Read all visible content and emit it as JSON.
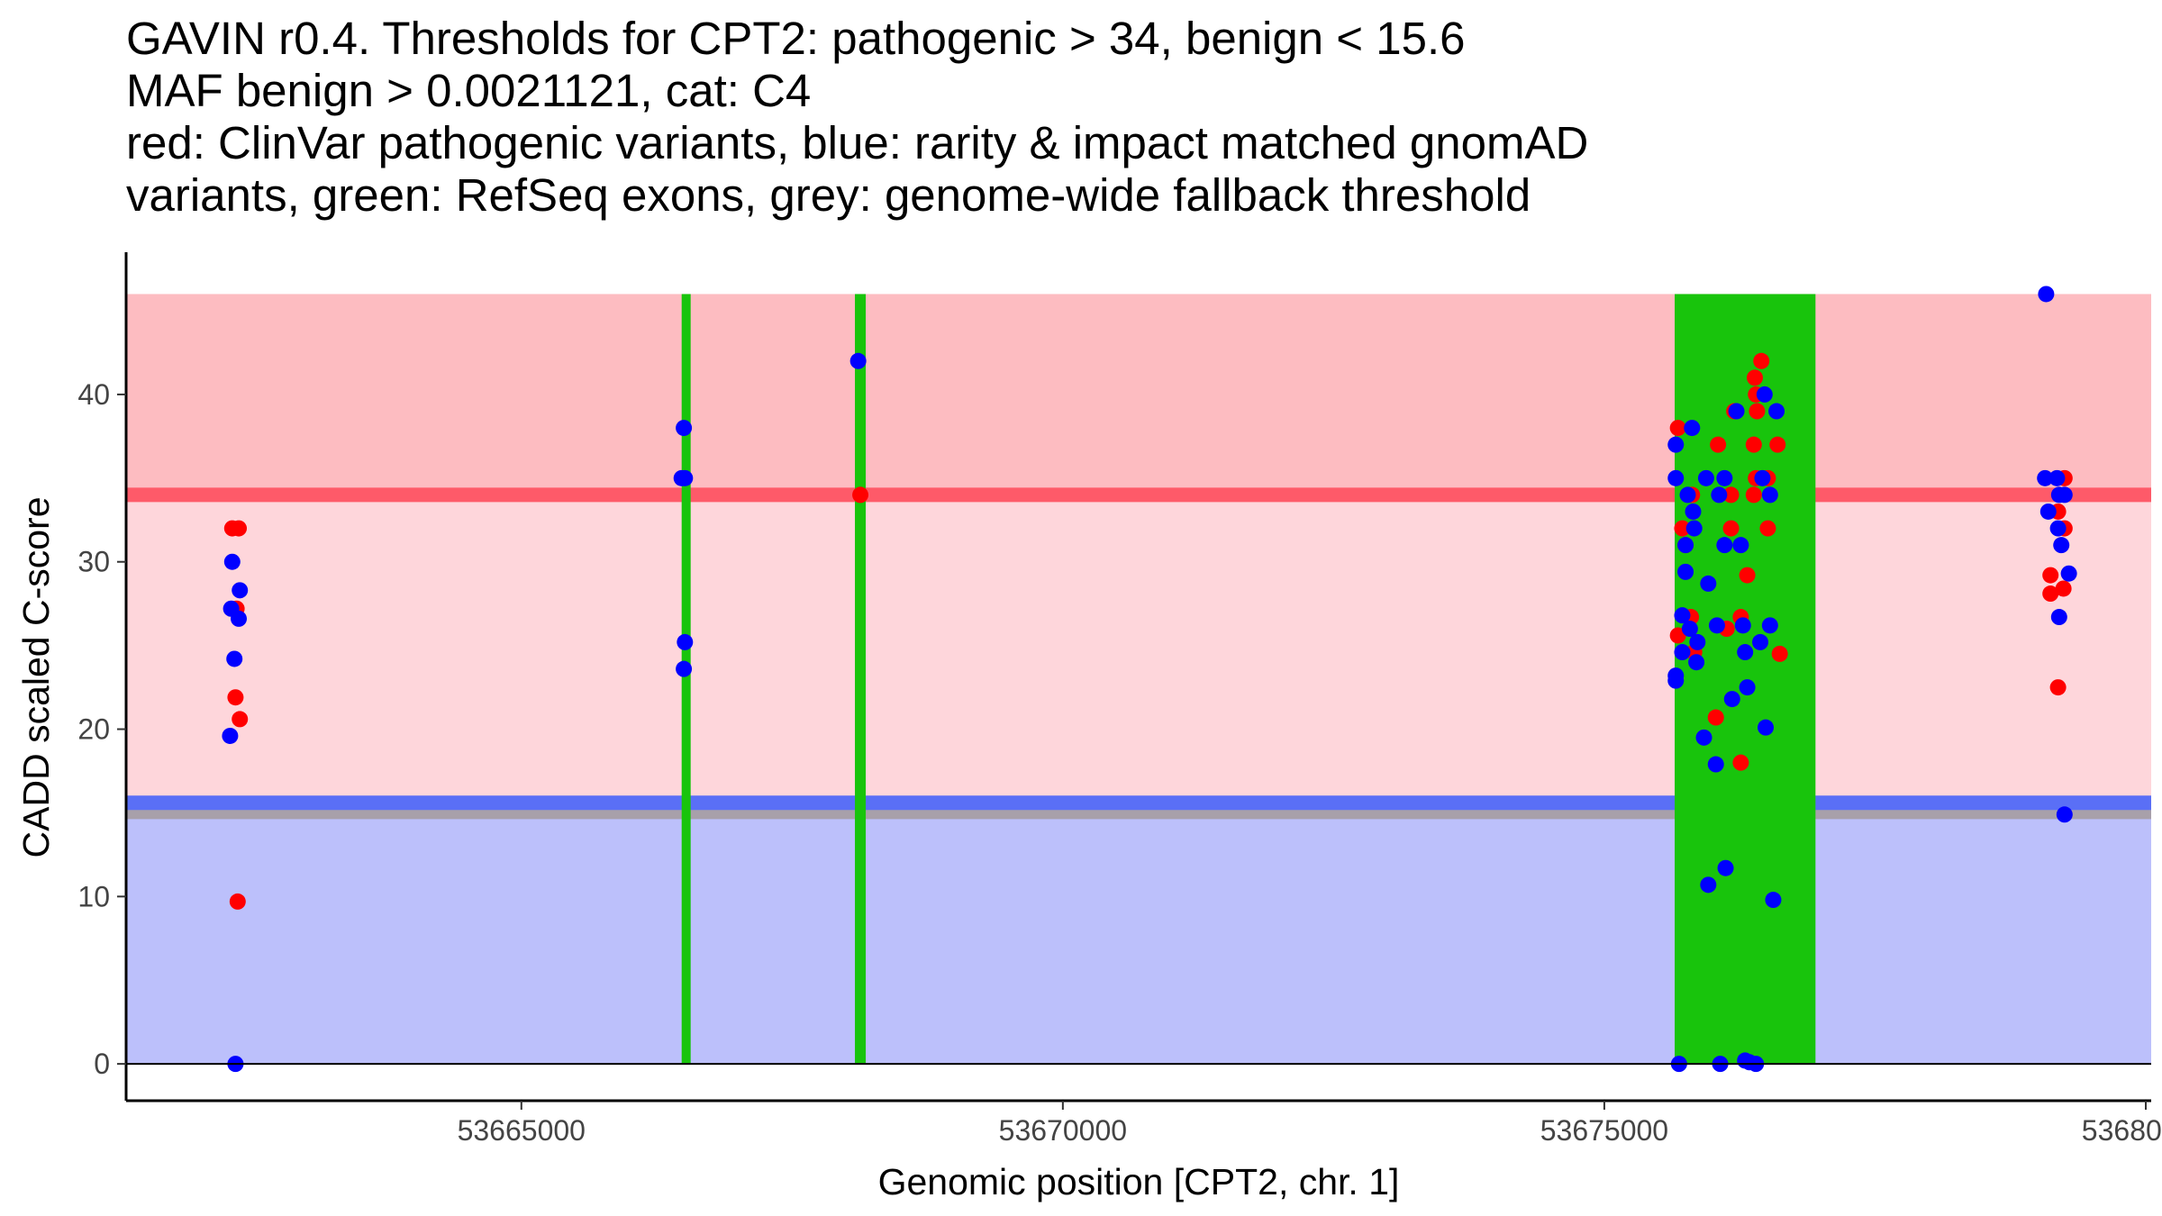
{
  "title_lines": [
    "GAVIN r0.4. Thresholds for CPT2: pathogenic > 34, benign < 15.6",
    "MAF benign > 0.0021121, cat: C4",
    "red: ClinVar pathogenic variants, blue: rarity & impact matched gnomAD",
    "variants, green: RefSeq exons, grey: genome-wide fallback threshold"
  ],
  "colors": {
    "pathogenic_zone": "#fdbcc1",
    "grey_zone": "#fed6db",
    "benign_zone": "#bcc0fb",
    "pathogenic_line": "#fe5a69",
    "benign_line": "#5a6ff6",
    "fallback_line": "#a8a0aa",
    "exon": "#18c40c",
    "clinvar_point": "#ff0000",
    "gnomad_point": "#0000ff"
  },
  "chart_data": {
    "type": "scatter",
    "title": "GAVIN r0.4. Thresholds for CPT2: pathogenic > 34, benign < 15.6",
    "xlabel": "Genomic position [CPT2, chr. 1]",
    "ylabel": "CADD scaled C-score",
    "xlim": [
      53661350,
      53680050
    ],
    "ylim": [
      -2.2,
      48.5
    ],
    "x_ticks": [
      53665000,
      53670000,
      53675000,
      53680000
    ],
    "x_tick_labels": [
      "53665000",
      "53670000",
      "53675000",
      "53680000"
    ],
    "y_ticks": [
      0,
      10,
      20,
      30,
      40
    ],
    "y_tick_labels": [
      "0",
      "10",
      "20",
      "30",
      "40"
    ],
    "thresholds": {
      "pathogenic": 34,
      "benign": 15.6,
      "fallback": 15,
      "zone_top": 46
    },
    "exons": [
      [
        53666480,
        53666560
      ],
      [
        53668080,
        53668180
      ],
      [
        53675650,
        53676950
      ]
    ],
    "series": [
      {
        "name": "ClinVar pathogenic",
        "color": "red",
        "points": [
          [
            53662330,
            32
          ],
          [
            53662390,
            32
          ],
          [
            53662370,
            27.2
          ],
          [
            53662360,
            21.9
          ],
          [
            53662400,
            20.6
          ],
          [
            53662380,
            9.7
          ],
          [
            53668130,
            34
          ],
          [
            53675680,
            38
          ],
          [
            53675720,
            32
          ],
          [
            53675750,
            31
          ],
          [
            53675810,
            34
          ],
          [
            53675800,
            26.7
          ],
          [
            53675680,
            25.6
          ],
          [
            53675830,
            24.6
          ],
          [
            53676030,
            20.7
          ],
          [
            53676050,
            37
          ],
          [
            53676130,
            26
          ],
          [
            53676170,
            32
          ],
          [
            53676200,
            39
          ],
          [
            53676170,
            34
          ],
          [
            53676260,
            26.7
          ],
          [
            53676260,
            18
          ],
          [
            53676320,
            29.2
          ],
          [
            53676390,
            41
          ],
          [
            53676400,
            40
          ],
          [
            53676410,
            39
          ],
          [
            53676450,
            42
          ],
          [
            53676380,
            37
          ],
          [
            53676400,
            35
          ],
          [
            53676380,
            34
          ],
          [
            53676510,
            35
          ],
          [
            53676510,
            32
          ],
          [
            53676600,
            37
          ],
          [
            53676620,
            24.5
          ],
          [
            53679120,
            29.2
          ],
          [
            53679120,
            28.1
          ],
          [
            53679190,
            33
          ],
          [
            53679190,
            22.5
          ],
          [
            53679250,
            35
          ],
          [
            53679250,
            32
          ],
          [
            53679240,
            28.4
          ]
        ]
      },
      {
        "name": "gnomAD matched",
        "color": "blue",
        "points": [
          [
            53662320,
            27.2
          ],
          [
            53662330,
            30
          ],
          [
            53662350,
            24.2
          ],
          [
            53662400,
            28.3
          ],
          [
            53662390,
            26.6
          ],
          [
            53662310,
            19.6
          ],
          [
            53662360,
            0
          ],
          [
            53666500,
            38
          ],
          [
            53666480,
            35
          ],
          [
            53666510,
            35
          ],
          [
            53666510,
            25.2
          ],
          [
            53666500,
            23.6
          ],
          [
            53668110,
            42
          ],
          [
            53675660,
            37
          ],
          [
            53675660,
            35
          ],
          [
            53675660,
            23.2
          ],
          [
            53675660,
            22.9
          ],
          [
            53675690,
            0
          ],
          [
            53675720,
            26.8
          ],
          [
            53675720,
            24.6
          ],
          [
            53675750,
            29.4
          ],
          [
            53675750,
            31
          ],
          [
            53675770,
            34
          ],
          [
            53675790,
            26
          ],
          [
            53675810,
            38
          ],
          [
            53675820,
            33
          ],
          [
            53675830,
            32
          ],
          [
            53675860,
            25.2
          ],
          [
            53675850,
            24
          ],
          [
            53675920,
            19.5
          ],
          [
            53675960,
            28.7
          ],
          [
            53675940,
            35
          ],
          [
            53675960,
            10.7
          ],
          [
            53676030,
            17.9
          ],
          [
            53676040,
            26.2
          ],
          [
            53676060,
            34
          ],
          [
            53676070,
            0
          ],
          [
            53676110,
            35
          ],
          [
            53676110,
            31
          ],
          [
            53676120,
            11.7
          ],
          [
            53676180,
            21.8
          ],
          [
            53676220,
            39
          ],
          [
            53676260,
            31
          ],
          [
            53676280,
            26.2
          ],
          [
            53676300,
            24.6
          ],
          [
            53676320,
            22.5
          ],
          [
            53676300,
            0.2
          ],
          [
            53676340,
            0.1
          ],
          [
            53676400,
            0
          ],
          [
            53676440,
            25.2
          ],
          [
            53676460,
            35
          ],
          [
            53676480,
            40
          ],
          [
            53676490,
            20.1
          ],
          [
            53676530,
            34
          ],
          [
            53676530,
            26.2
          ],
          [
            53676560,
            9.8
          ],
          [
            53676590,
            39
          ],
          [
            53679080,
            46
          ],
          [
            53679070,
            35
          ],
          [
            53679100,
            33
          ],
          [
            53679180,
            35
          ],
          [
            53679200,
            34
          ],
          [
            53679190,
            32
          ],
          [
            53679250,
            34
          ],
          [
            53679220,
            31
          ],
          [
            53679200,
            26.7
          ],
          [
            53679290,
            29.3
          ],
          [
            53679250,
            14.9
          ]
        ]
      }
    ]
  }
}
